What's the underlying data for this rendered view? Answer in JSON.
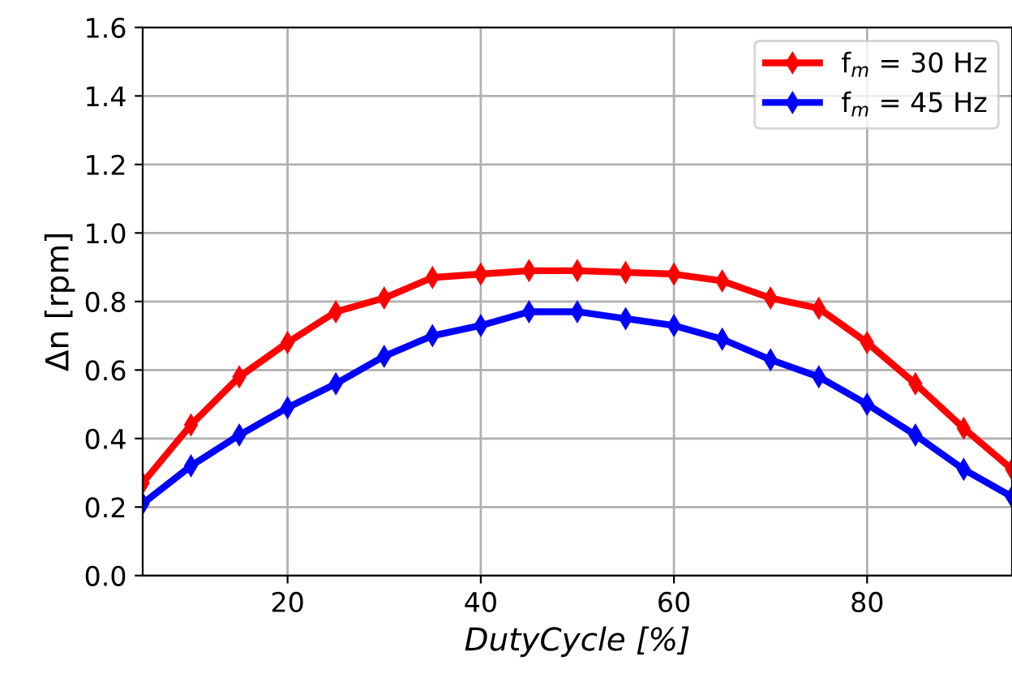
{
  "chart_data": {
    "type": "line",
    "xlabel": "DutyCycle [%]",
    "ylabel": "Δn [rpm]",
    "x": [
      5,
      10,
      15,
      20,
      25,
      30,
      35,
      40,
      45,
      50,
      55,
      60,
      65,
      70,
      75,
      80,
      85,
      90,
      95
    ],
    "series": [
      {
        "name": "f$_{m}$ = 30 Hz",
        "color": "#ff0000",
        "values": [
          0.27,
          0.44,
          0.58,
          0.68,
          0.77,
          0.81,
          0.87,
          0.88,
          0.89,
          0.89,
          0.885,
          0.88,
          0.86,
          0.81,
          0.78,
          0.68,
          0.56,
          0.43,
          0.31
        ]
      },
      {
        "name": "f$_{m}$ = 45 Hz",
        "color": "#0000ff",
        "values": [
          0.21,
          0.32,
          0.41,
          0.49,
          0.56,
          0.64,
          0.7,
          0.73,
          0.77,
          0.77,
          0.75,
          0.73,
          0.69,
          0.63,
          0.58,
          0.5,
          0.41,
          0.31,
          0.23
        ]
      }
    ],
    "xlim": [
      5,
      95
    ],
    "xticks": [
      20,
      40,
      60,
      80
    ],
    "ylim": [
      0,
      1.6
    ],
    "yticks": [
      {
        "value": 0,
        "label": "0.0"
      },
      0.2,
      0.4,
      0.6,
      0.8,
      {
        "value": 1,
        "label": "1.0"
      },
      1.2,
      1.4,
      1.6
    ],
    "grid": true,
    "legend": "top right",
    "marker": "diamond",
    "line_style": "solid"
  }
}
